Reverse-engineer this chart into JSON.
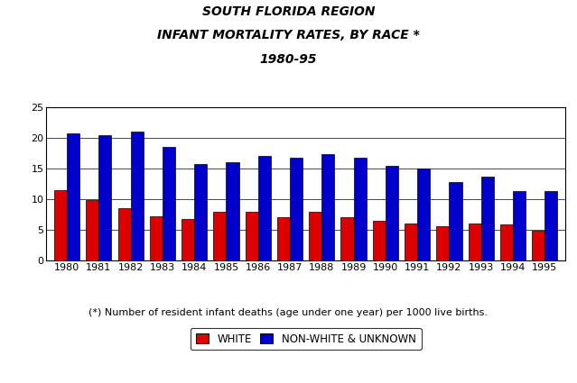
{
  "title_line1": "SOUTH FLORIDA REGION",
  "title_line2": "INFANT MORTALITY RATES, BY RACE *",
  "title_line3": "1980-95",
  "footnote": "(*) Number of resident infant deaths (age under one year) per 1000 live births.",
  "years": [
    1980,
    1981,
    1982,
    1983,
    1984,
    1985,
    1986,
    1987,
    1988,
    1989,
    1990,
    1991,
    1992,
    1993,
    1994,
    1995
  ],
  "white": [
    11.5,
    9.9,
    8.5,
    7.2,
    6.8,
    8.0,
    7.9,
    7.0,
    7.9,
    7.1,
    6.5,
    6.0,
    5.6,
    6.1,
    5.9,
    4.8
  ],
  "nonwhite": [
    20.8,
    20.5,
    21.0,
    18.6,
    15.7,
    16.0,
    17.0,
    16.7,
    17.4,
    16.7,
    15.4,
    15.0,
    12.8,
    13.7,
    11.3,
    11.3
  ],
  "white_color": "#dd0000",
  "nonwhite_color": "#0000cc",
  "legend_white": "WHITE",
  "legend_nonwhite": "NON-WHITE & UNKNOWN",
  "ylim": [
    0,
    25
  ],
  "yticks": [
    0,
    5,
    10,
    15,
    20,
    25
  ],
  "bar_width": 0.4,
  "bg_color": "#ffffff",
  "plot_bg_color": "#ffffff",
  "title_fontsize": 10,
  "tick_fontsize": 8,
  "footnote_fontsize": 8
}
